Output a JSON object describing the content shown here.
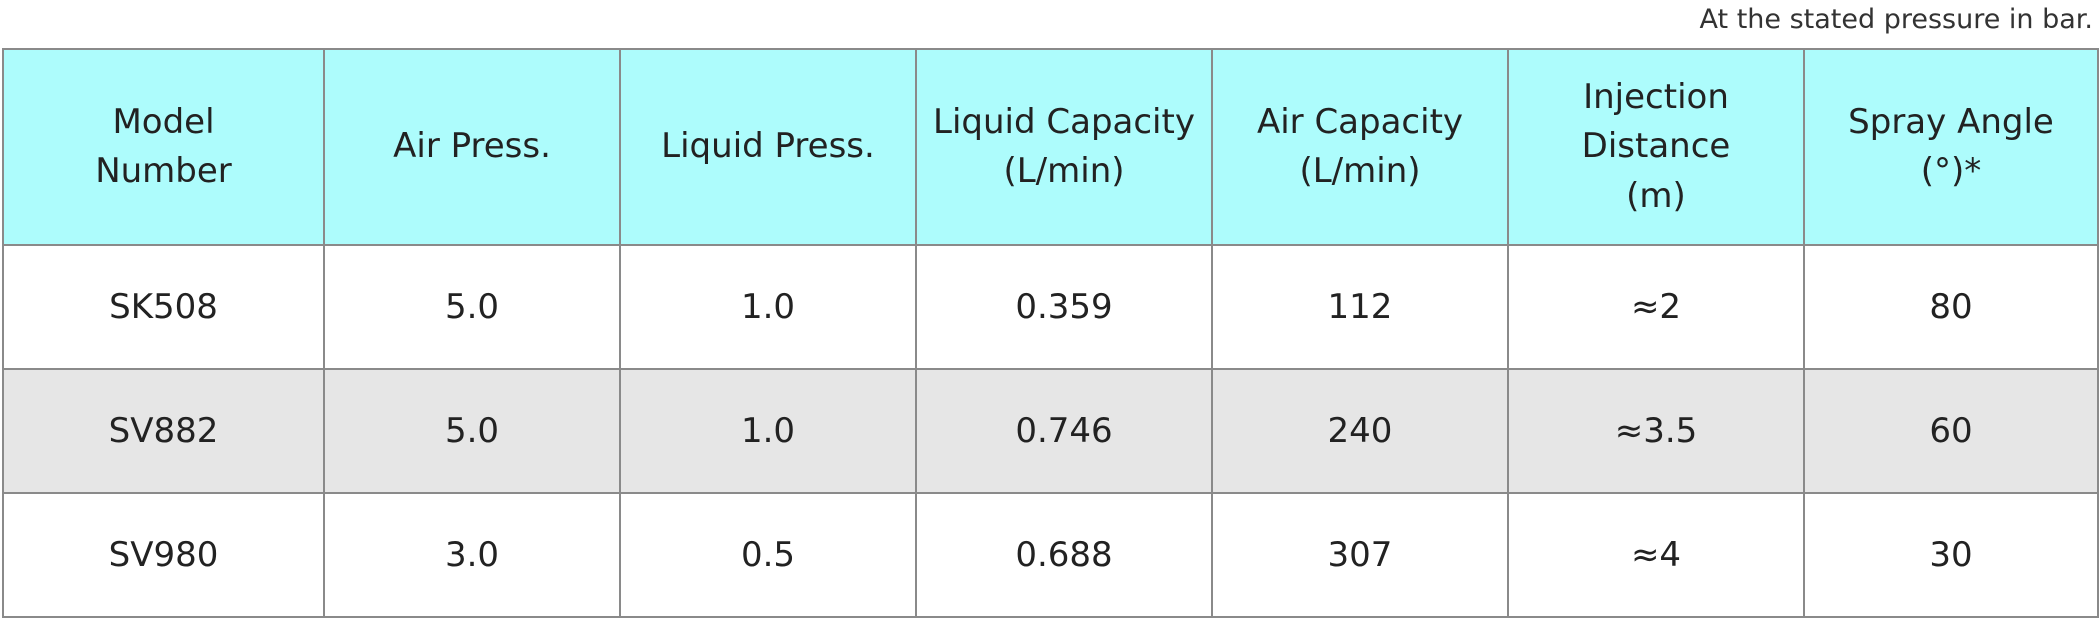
{
  "note": "At the stated pressure in bar.",
  "table": {
    "header": [
      "Model\nNumber",
      "Air Press.",
      "Liquid Press.",
      "Liquid  Capacity\n(L/min)",
      "Air Capacity\n(L/min)",
      "Injection\nDistance\n(m)",
      "Spray Angle\n(°)*"
    ],
    "rows": [
      [
        "SK508",
        "5.0",
        "1.0",
        "0.359",
        "112",
        "≈2",
        "80"
      ],
      [
        "SV882",
        "5.0",
        "1.0",
        "0.746",
        "240",
        "≈3.5",
        "60"
      ],
      [
        "SV980",
        "3.0",
        "0.5",
        "0.688",
        "307",
        "≈4",
        "30"
      ]
    ]
  }
}
